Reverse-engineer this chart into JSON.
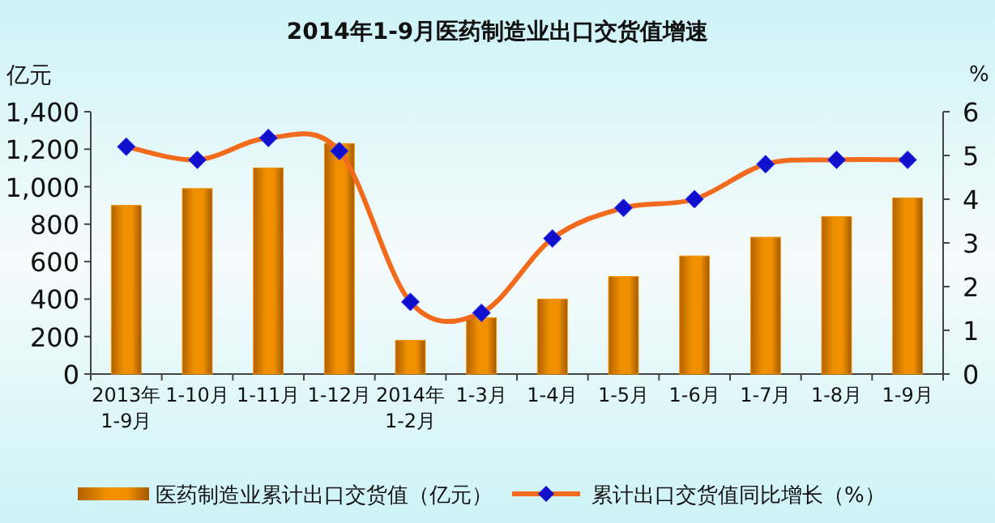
{
  "chart_data": {
    "type": "bar",
    "title": "2014年1-9月医药制造业出口交货值增速",
    "ylabel": "亿元",
    "y2label": "%",
    "categories": [
      "2013年\n1-9月",
      "1-10月",
      "1-11月",
      "1-12月",
      "2014年\n1-2月",
      "1-3月",
      "1-4月",
      "1-5月",
      "1-6月",
      "1-7月",
      "1-8月",
      "1-9月"
    ],
    "series": [
      {
        "name": "医药制造业累计出口交货值（亿元）",
        "color": "#f09000",
        "values": [
          900,
          990,
          1100,
          1230,
          180,
          300,
          400,
          520,
          630,
          730,
          840,
          940
        ]
      },
      {
        "name": "累计出口交货值同比增长（%）",
        "type": "line",
        "axis": "y2",
        "color": "#f26b1d",
        "colors": [
          "#1010cc",
          "#1010cc",
          "#1010cc",
          "#1010cc",
          "#1010cc",
          "#1010cc",
          "#1010cc",
          "#1010cc",
          "#1010cc",
          "#1010cc",
          "#1010cc",
          "#1010cc"
        ],
        "values": [
          5.2,
          4.9,
          5.4,
          5.1,
          1.65,
          1.4,
          3.1,
          3.8,
          4.0,
          4.8,
          4.9,
          4.9
        ]
      }
    ],
    "ylim": [
      0,
      1400
    ],
    "yticks": [
      {
        "value": 0,
        "label": "0"
      },
      {
        "value": 200,
        "label": "200"
      },
      {
        "value": 400,
        "label": "400"
      },
      {
        "value": 600,
        "label": "600"
      },
      {
        "value": 800,
        "label": "800"
      },
      {
        "value": 1000,
        "label": "1,000"
      },
      {
        "value": 1200,
        "label": "1,200"
      },
      {
        "value": 1400,
        "label": "1,400"
      }
    ],
    "y2lim": [
      0,
      6
    ],
    "y2ticks": [
      0,
      1,
      2,
      3,
      4,
      5,
      6
    ],
    "marker": "diamond",
    "grid": false,
    "legend": "bottom"
  }
}
